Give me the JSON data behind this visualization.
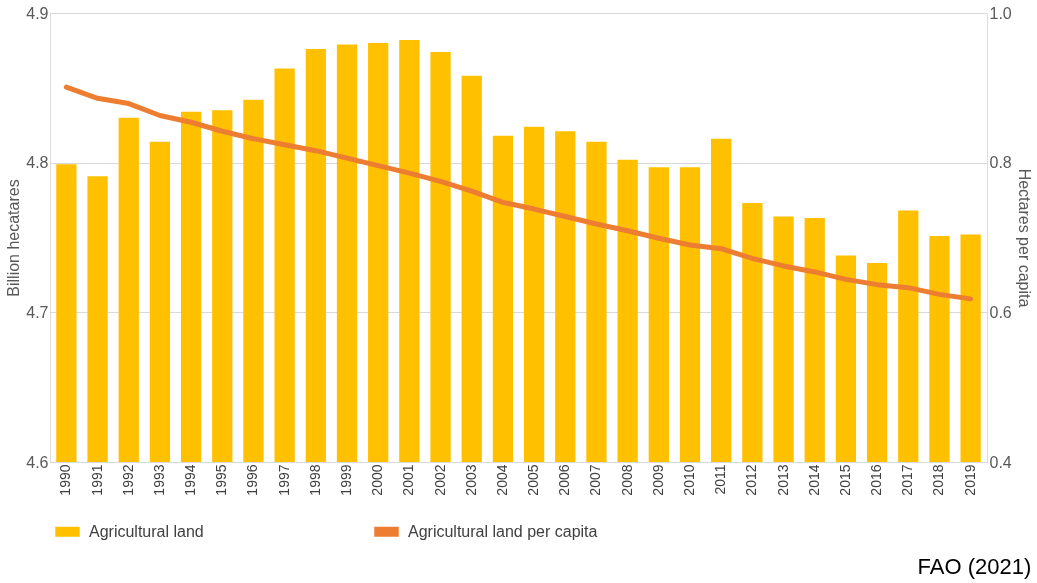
{
  "chart_data": {
    "type": "bar",
    "ylabel": "Billion hecatares",
    "y2label": "Hectares per capita",
    "categories": [
      "1990",
      "1991",
      "1992",
      "1993",
      "1994",
      "1995",
      "1996",
      "1997",
      "1998",
      "1999",
      "2000",
      "2001",
      "2002",
      "2003",
      "2004",
      "2005",
      "2006",
      "2007",
      "2008",
      "2009",
      "2010",
      "2011",
      "2012",
      "2013",
      "2014",
      "2015",
      "2016",
      "2017",
      "2018",
      "2019"
    ],
    "series": [
      {
        "name": "Agricultural land",
        "color": "#ffc000",
        "values": [
          4.799,
          4.791,
          4.83,
          4.814,
          4.834,
          4.835,
          4.842,
          4.863,
          4.876,
          4.879,
          4.88,
          4.882,
          4.874,
          4.858,
          4.818,
          4.824,
          4.821,
          4.814,
          4.802,
          4.797,
          4.797,
          4.816,
          4.773,
          4.764,
          4.763,
          4.738,
          4.733,
          4.768,
          4.751,
          4.752
        ]
      },
      {
        "name": "Agricultural land per capita",
        "type": "line",
        "axis": "y2",
        "color": "#ed7d31",
        "values": [
          0.901,
          0.886,
          0.879,
          0.863,
          0.854,
          0.842,
          0.832,
          0.824,
          0.816,
          0.806,
          0.796,
          0.786,
          0.775,
          0.762,
          0.747,
          0.738,
          0.728,
          0.718,
          0.709,
          0.699,
          0.69,
          0.685,
          0.672,
          0.662,
          0.654,
          0.644,
          0.637,
          0.633,
          0.624,
          0.618
        ]
      }
    ],
    "ylim": [
      4.6,
      4.9
    ],
    "yticks": [
      4.6,
      4.7,
      4.8,
      4.9
    ],
    "y2lim": [
      0.4,
      1.0
    ],
    "y2ticks": [
      0.4,
      0.6,
      0.8,
      {
        "value": 1.0,
        "label": "1.0"
      }
    ],
    "grid": "y",
    "legend": "bottom",
    "marker": "none",
    "line_style": "solid",
    "annotations": [
      "FAO (2021)"
    ]
  }
}
